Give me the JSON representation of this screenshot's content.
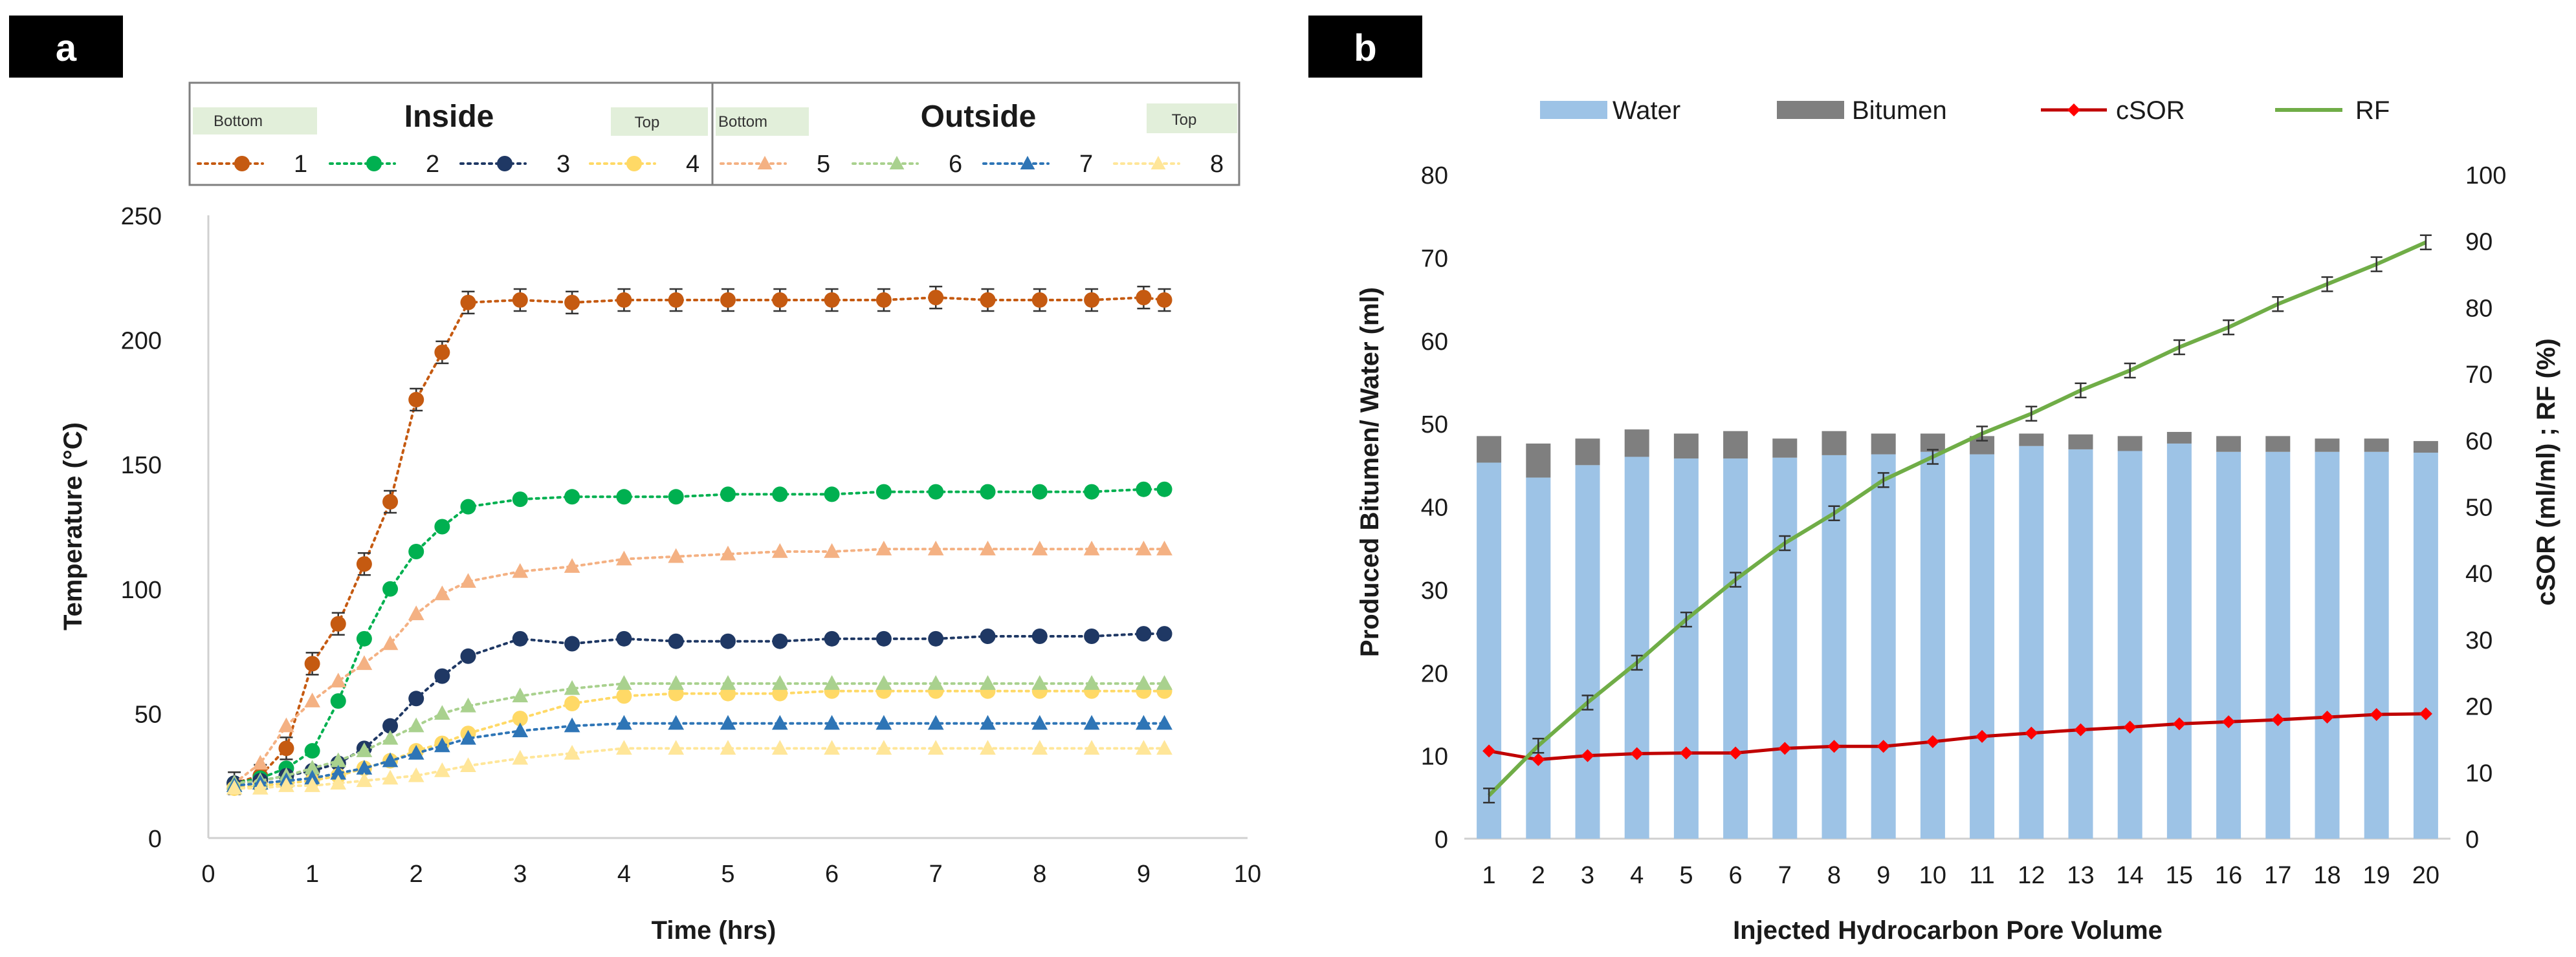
{
  "panel_a": {
    "label": "a",
    "legend": {
      "inside_title": "Inside",
      "outside_title": "Outside",
      "bottom_label": "Bottom",
      "top_label": "Top"
    },
    "axes": {
      "xlabel": "Time (hrs)",
      "ylabel": "Temperature (°C)",
      "x_ticks": [
        "0",
        "1",
        "2",
        "3",
        "4",
        "5",
        "6",
        "7",
        "8",
        "9",
        "10"
      ],
      "y_ticks": [
        "0",
        "50",
        "100",
        "150",
        "200",
        "250"
      ]
    }
  },
  "panel_b": {
    "label": "b",
    "axes": {
      "xlabel": "Injected Hydrocarbon Pore Volume",
      "ylabel_left": "Produced Bitumen/ Water  (ml)",
      "ylabel_right": "cSOR  (ml/ml) ; RF  (%)",
      "left_ticks": [
        "0",
        "10",
        "20",
        "30",
        "40",
        "50",
        "60",
        "70",
        "80"
      ],
      "right_ticks": [
        "0",
        "10",
        "20",
        "30",
        "40",
        "50",
        "60",
        "70",
        "80",
        "90",
        "100"
      ]
    }
  },
  "colors": {
    "s1": "#C55A11",
    "s2": "#00B050",
    "s3": "#1F3864",
    "s4": "#FFD966",
    "s5": "#F4B183",
    "s6": "#A9D18E",
    "s7": "#2E75B6",
    "s8": "#FFE699",
    "water": "#9DC3E6",
    "bitumen": "#7F7F7F",
    "csor": "#C00000",
    "csor_marker": "#FF0000",
    "rf": "#70AD47",
    "legend_tag": "#E2EFDA"
  },
  "chart_data": [
    {
      "type": "line",
      "xlabel": "Time (hrs)",
      "ylabel": "Temperature (°C)",
      "xlim": [
        0,
        10
      ],
      "ylim": [
        0,
        250
      ],
      "grid": false,
      "legend_position": "top",
      "series": [
        {
          "name": "1",
          "group": "Inside",
          "marker": "circle",
          "color": "#C55A11",
          "error_bars": true,
          "x": [
            0.25,
            0.5,
            0.75,
            1,
            1.25,
            1.5,
            1.75,
            2,
            2.25,
            2.5,
            3,
            3.5,
            4,
            4.5,
            5,
            5.5,
            6,
            6.5,
            7,
            7.5,
            8,
            8.5,
            9,
            9.2
          ],
          "y": [
            22,
            25,
            36,
            70,
            86,
            110,
            135,
            176,
            195,
            215,
            216,
            215,
            216,
            216,
            216,
            216,
            216,
            216,
            217,
            216,
            216,
            216,
            217,
            216
          ]
        },
        {
          "name": "2",
          "group": "Inside",
          "marker": "circle",
          "color": "#00B050",
          "x": [
            0.25,
            0.5,
            0.75,
            1,
            1.25,
            1.5,
            1.75,
            2,
            2.25,
            2.5,
            3,
            3.5,
            4,
            4.5,
            5,
            5.5,
            6,
            6.5,
            7,
            7.5,
            8,
            8.5,
            9,
            9.2
          ],
          "y": [
            22,
            24,
            28,
            35,
            55,
            80,
            100,
            115,
            125,
            133,
            136,
            137,
            137,
            137,
            138,
            138,
            138,
            139,
            139,
            139,
            139,
            139,
            140,
            140
          ]
        },
        {
          "name": "3",
          "group": "Inside",
          "marker": "circle",
          "color": "#1F3864",
          "x": [
            0.25,
            0.5,
            0.75,
            1,
            1.25,
            1.5,
            1.75,
            2,
            2.25,
            2.5,
            3,
            3.5,
            4,
            4.5,
            5,
            5.5,
            6,
            6.5,
            7,
            7.5,
            8,
            8.5,
            9,
            9.2
          ],
          "y": [
            22,
            23,
            25,
            27,
            30,
            36,
            45,
            56,
            65,
            73,
            80,
            78,
            80,
            79,
            79,
            79,
            80,
            80,
            80,
            81,
            81,
            81,
            82,
            82
          ]
        },
        {
          "name": "4",
          "group": "Inside",
          "marker": "circle",
          "color": "#FFD966",
          "x": [
            0.25,
            0.5,
            0.75,
            1,
            1.25,
            1.5,
            1.75,
            2,
            2.25,
            2.5,
            3,
            3.5,
            4,
            4.5,
            5,
            5.5,
            6,
            6.5,
            7,
            7.5,
            8,
            8.5,
            9,
            9.2
          ],
          "y": [
            20,
            21,
            22,
            23,
            25,
            28,
            31,
            35,
            38,
            42,
            48,
            54,
            57,
            58,
            58,
            58,
            59,
            59,
            59,
            59,
            59,
            59,
            59,
            59
          ]
        },
        {
          "name": "5",
          "group": "Outside",
          "marker": "triangle",
          "color": "#F4B183",
          "x": [
            0.25,
            0.5,
            0.75,
            1,
            1.25,
            1.5,
            1.75,
            2,
            2.25,
            2.5,
            3,
            3.5,
            4,
            4.5,
            5,
            5.5,
            6,
            6.5,
            7,
            7.5,
            8,
            8.5,
            9,
            9.2
          ],
          "y": [
            22,
            30,
            45,
            55,
            63,
            70,
            78,
            90,
            98,
            103,
            107,
            109,
            112,
            113,
            114,
            115,
            115,
            116,
            116,
            116,
            116,
            116,
            116,
            116
          ]
        },
        {
          "name": "6",
          "group": "Outside",
          "marker": "triangle",
          "color": "#A9D18E",
          "x": [
            0.25,
            0.5,
            0.75,
            1,
            1.25,
            1.5,
            1.75,
            2,
            2.25,
            2.5,
            3,
            3.5,
            4,
            4.5,
            5,
            5.5,
            6,
            6.5,
            7,
            7.5,
            8,
            8.5,
            9,
            9.2
          ],
          "y": [
            22,
            23,
            25,
            28,
            31,
            35,
            40,
            45,
            50,
            53,
            57,
            60,
            62,
            62,
            62,
            62,
            62,
            62,
            62,
            62,
            62,
            62,
            62,
            62
          ]
        },
        {
          "name": "7",
          "group": "Outside",
          "marker": "triangle",
          "color": "#2E75B6",
          "x": [
            0.25,
            0.5,
            0.75,
            1,
            1.25,
            1.5,
            1.75,
            2,
            2.25,
            2.5,
            3,
            3.5,
            4,
            4.5,
            5,
            5.5,
            6,
            6.5,
            7,
            7.5,
            8,
            8.5,
            9,
            9.2
          ],
          "y": [
            21,
            22,
            23,
            24,
            26,
            28,
            31,
            34,
            37,
            40,
            43,
            45,
            46,
            46,
            46,
            46,
            46,
            46,
            46,
            46,
            46,
            46,
            46,
            46
          ]
        },
        {
          "name": "8",
          "group": "Outside",
          "marker": "triangle",
          "color": "#FFE699",
          "x": [
            0.25,
            0.5,
            0.75,
            1,
            1.25,
            1.5,
            1.75,
            2,
            2.25,
            2.5,
            3,
            3.5,
            4,
            4.5,
            5,
            5.5,
            6,
            6.5,
            7,
            7.5,
            8,
            8.5,
            9,
            9.2
          ],
          "y": [
            20,
            20,
            21,
            21,
            22,
            23,
            24,
            25,
            27,
            29,
            32,
            34,
            36,
            36,
            36,
            36,
            36,
            36,
            36,
            36,
            36,
            36,
            36,
            36
          ]
        }
      ]
    },
    {
      "type": "bar",
      "xlabel": "Injected Hydrocarbon Pore Volume",
      "ylabel": "Produced Bitumen/ Water  (ml)",
      "ylabel_right": "cSOR  (ml/ml) ; RF  (%)",
      "ylim": [
        0,
        80
      ],
      "ylim_right": [
        0,
        100
      ],
      "stacked": true,
      "legend_position": "top",
      "categories": [
        "1",
        "2",
        "3",
        "4",
        "5",
        "6",
        "7",
        "8",
        "9",
        "10",
        "11",
        "12",
        "13",
        "14",
        "15",
        "16",
        "17",
        "18",
        "19",
        "20"
      ],
      "series": [
        {
          "name": "Water",
          "type": "bar",
          "axis": "left",
          "color": "#9DC3E6",
          "values": [
            45.3,
            43.5,
            45.0,
            46.0,
            45.8,
            45.8,
            45.9,
            46.2,
            46.3,
            46.6,
            46.3,
            47.3,
            46.9,
            46.7,
            47.6,
            46.6,
            46.6,
            46.6,
            46.6,
            46.5
          ]
        },
        {
          "name": "Bitumen",
          "type": "bar",
          "axis": "left",
          "color": "#7F7F7F",
          "values": [
            3.2,
            4.1,
            3.2,
            3.3,
            3.0,
            3.3,
            2.3,
            2.9,
            2.5,
            2.2,
            2.2,
            1.5,
            1.8,
            1.8,
            1.4,
            1.9,
            1.9,
            1.6,
            1.6,
            1.4
          ]
        },
        {
          "name": "cSOR",
          "type": "line",
          "axis": "right",
          "marker": "diamond",
          "color": "#C00000",
          "values": [
            13.2,
            11.9,
            12.5,
            12.8,
            12.9,
            12.9,
            13.6,
            13.9,
            13.9,
            14.6,
            15.4,
            15.9,
            16.4,
            16.8,
            17.3,
            17.6,
            17.9,
            18.3,
            18.7,
            18.8
          ]
        },
        {
          "name": "RF",
          "type": "line",
          "axis": "right",
          "color": "#70AD47",
          "error_bars": true,
          "values": [
            6.5,
            14,
            20.5,
            26.5,
            33,
            39,
            44.5,
            49,
            54,
            57.5,
            61,
            64,
            67.5,
            70.5,
            74,
            77,
            80.5,
            83.5,
            86.5,
            89.8
          ]
        }
      ]
    }
  ]
}
